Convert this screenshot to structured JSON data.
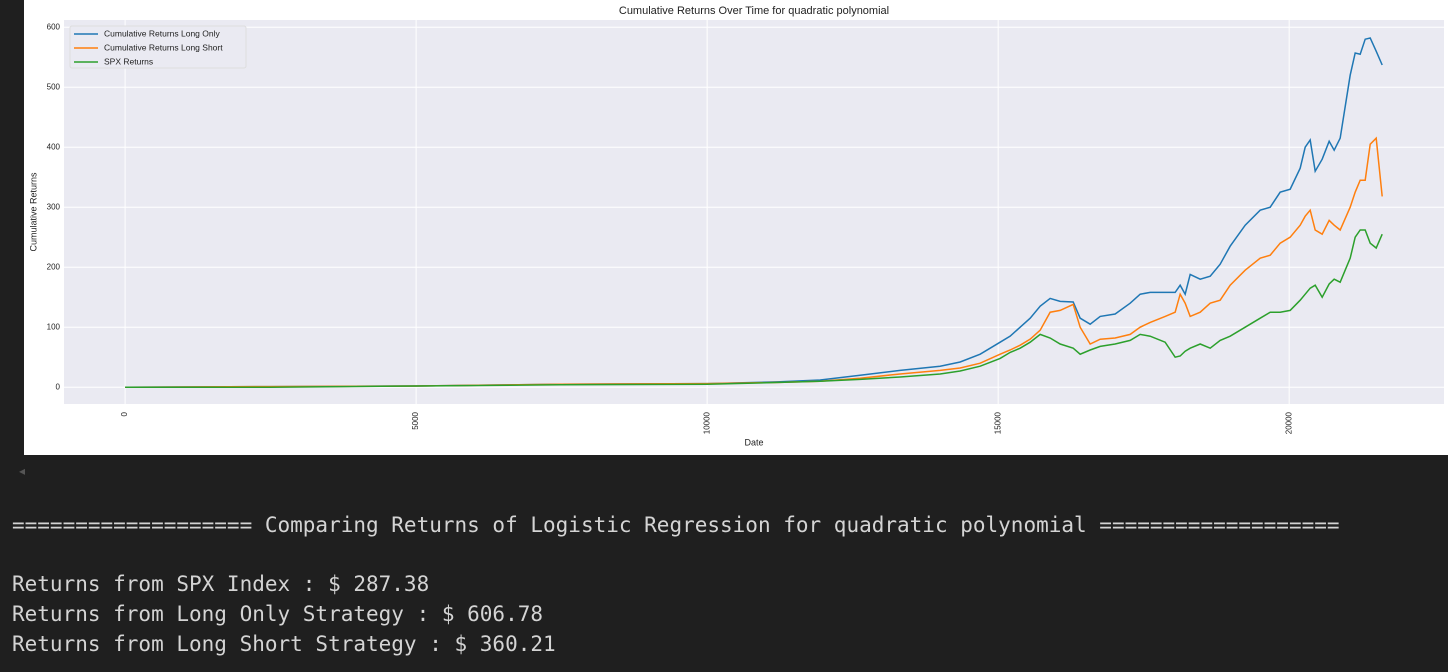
{
  "chart_data": {
    "type": "line",
    "title": "Cumulative Returns Over Time for quadratic polynomial",
    "x_label": "Date",
    "y_label": "Cumulative Returns",
    "x": [
      0,
      2491,
      5000,
      7474,
      10000,
      11254,
      11942,
      12629,
      13316,
      14003,
      14347,
      14691,
      15034,
      15206,
      15378,
      15550,
      15722,
      15893,
      16065,
      16289,
      16409,
      16581,
      16753,
      17010,
      17268,
      17440,
      17612,
      17869,
      18041,
      18127,
      18213,
      18299,
      18471,
      18643,
      18814,
      18986,
      19244,
      19502,
      19674,
      19845,
      20017,
      20189,
      20275,
      20361,
      20447,
      20567,
      20687,
      20773,
      20876,
      21048,
      21134,
      21220,
      21306,
      21392,
      21495,
      21598
    ],
    "series": [
      {
        "name": "Cumulative Returns Long Only",
        "color": "#1f77b4",
        "values": [
          0,
          1,
          2,
          5,
          6,
          9,
          12,
          20,
          28,
          35,
          42,
          55,
          75,
          85,
          100,
          115,
          135,
          148,
          143,
          142,
          115,
          105,
          118,
          122,
          140,
          155,
          158,
          158,
          158,
          170,
          155,
          188,
          180,
          185,
          205,
          235,
          270,
          295,
          300,
          325,
          330,
          365,
          400,
          412,
          360,
          380,
          410,
          395,
          415,
          520,
          557,
          555,
          580,
          582,
          560,
          537
        ]
      },
      {
        "name": "Cumulative Returns Long Short",
        "color": "#ff7f0e",
        "values": [
          0,
          1,
          2,
          5,
          6,
          8,
          10,
          15,
          22,
          28,
          32,
          40,
          55,
          62,
          70,
          80,
          95,
          125,
          128,
          138,
          100,
          72,
          80,
          82,
          88,
          100,
          108,
          118,
          125,
          155,
          140,
          118,
          125,
          140,
          145,
          170,
          195,
          215,
          220,
          240,
          250,
          270,
          285,
          295,
          262,
          255,
          278,
          270,
          262,
          300,
          325,
          345,
          345,
          405,
          415,
          318
        ]
      },
      {
        "name": "SPX Returns",
        "color": "#2ca02c",
        "values": [
          0,
          0,
          2,
          4,
          5,
          8,
          10,
          13,
          17,
          22,
          27,
          35,
          48,
          58,
          65,
          75,
          88,
          82,
          72,
          65,
          55,
          62,
          68,
          72,
          78,
          88,
          85,
          75,
          50,
          52,
          60,
          65,
          72,
          65,
          78,
          85,
          100,
          115,
          125,
          125,
          128,
          145,
          155,
          165,
          170,
          150,
          172,
          180,
          175,
          215,
          250,
          262,
          262,
          240,
          232,
          255
        ]
      }
    ],
    "xlim": [
      -1050,
      22660
    ],
    "ylim": [
      -28,
      612
    ],
    "xticks": [
      0,
      5000,
      10000,
      15000,
      20000
    ],
    "yticks": [
      0,
      100,
      200,
      300,
      400,
      500,
      600
    ],
    "grid": true,
    "legend": "upper left"
  },
  "output": {
    "heading": "=================== Comparing Returns of Logistic Regression for quadratic polynomial ===================",
    "lines": [
      "Returns from SPX Index : $ 287.38",
      "Returns from Long Only Strategy : $ 606.78",
      "Returns from Long Short Strategy : $ 360.21"
    ]
  }
}
